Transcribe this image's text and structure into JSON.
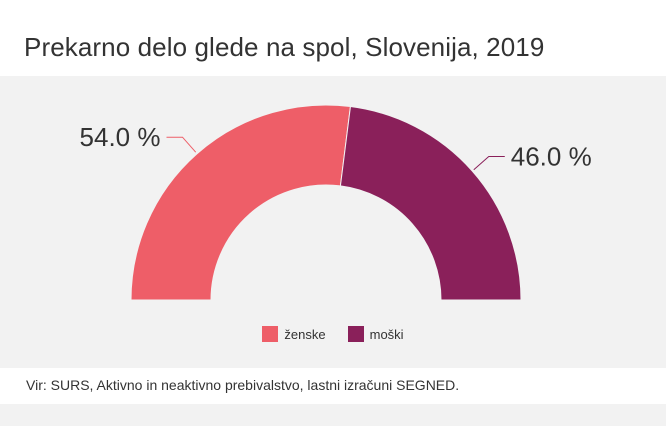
{
  "title": "Prekarno delo glede na spol, Slovenija, 2019",
  "source": "Vir: SURS, Aktivno in neaktivno prebivalstvo, lastni izračuni SEGNED.",
  "chart_data": {
    "type": "pie",
    "subtype": "semi-donut",
    "unit": "%",
    "series": [
      {
        "name": "ženske",
        "value": 54.0,
        "label": "54.0 %",
        "color": "#ee5e68"
      },
      {
        "name": "moški",
        "value": 46.0,
        "label": "46.0 %",
        "color": "#8a205a"
      }
    ],
    "legend_position": "bottom-center"
  },
  "colors": {
    "plot_background": "#f2f2f2",
    "connector": "#ee5e68"
  }
}
